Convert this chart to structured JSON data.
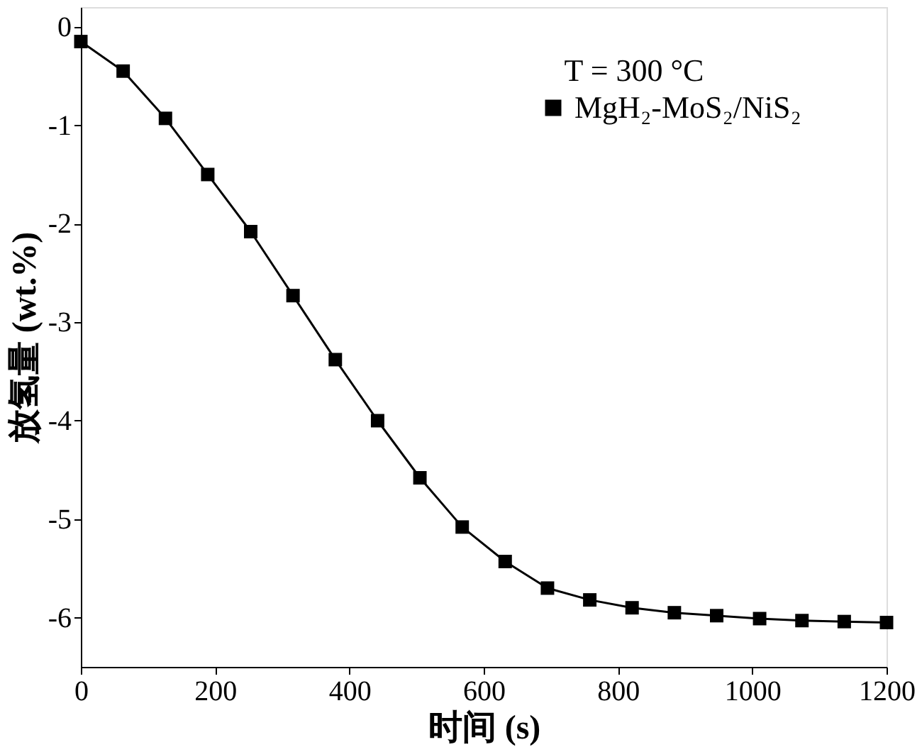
{
  "chart_data": {
    "type": "line",
    "xlabel": "时间 (s)",
    "ylabel": "放氢量 (wt.%)",
    "annotations": [
      "T = 300 °C"
    ],
    "x": [
      0,
      63,
      126,
      189,
      253,
      316,
      379,
      442,
      505,
      568,
      632,
      695,
      758,
      821,
      884,
      947,
      1011,
      1074,
      1137,
      1200
    ],
    "series": [
      {
        "name": "MgH₂-MoS₂/NiS₂",
        "color": "#000000",
        "values": [
          -0.15,
          -0.45,
          -0.93,
          -1.5,
          -2.08,
          -2.73,
          -3.38,
          -4.0,
          -4.58,
          -5.08,
          -5.43,
          -5.7,
          -5.82,
          -5.9,
          -5.95,
          -5.98,
          -6.01,
          -6.03,
          -6.04,
          -6.05
        ]
      }
    ],
    "xlim": [
      0,
      1200
    ],
    "xticks": [
      0,
      200,
      400,
      600,
      800,
      1000,
      1200
    ],
    "ylim": [
      -6.5,
      0.2
    ],
    "yticks": [
      0,
      -1,
      -2,
      -3,
      -4,
      -5,
      -6
    ],
    "marker": "square",
    "line_style": "solid",
    "legend": "top right",
    "grid": false
  }
}
